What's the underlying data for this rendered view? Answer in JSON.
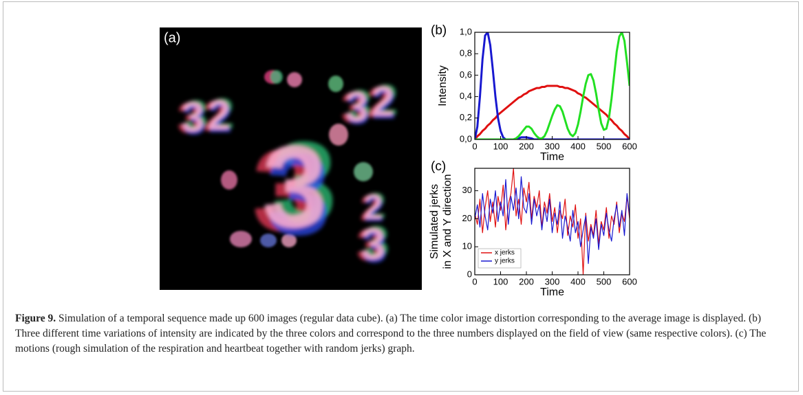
{
  "chart_data": [
    {
      "type": "line",
      "panel_label": "(b)",
      "x_label": "Time",
      "y_label": [
        "Intensity"
      ],
      "x": [
        0,
        10,
        20,
        30,
        40,
        50,
        60,
        70,
        80,
        90,
        100,
        110,
        120,
        130,
        140,
        150,
        160,
        170,
        180,
        190,
        200,
        210,
        220,
        230,
        240,
        250,
        260,
        270,
        280,
        290,
        300,
        310,
        320,
        330,
        340,
        350,
        360,
        370,
        380,
        390,
        400,
        410,
        420,
        430,
        440,
        450,
        460,
        470,
        480,
        490,
        500,
        510,
        520,
        530,
        540,
        550,
        560,
        570,
        580,
        590,
        600
      ],
      "series": [
        {
          "color": "#e01010",
          "values": [
            0,
            0.03,
            0.05,
            0.08,
            0.1,
            0.13,
            0.15,
            0.18,
            0.2,
            0.23,
            0.25,
            0.27,
            0.29,
            0.31,
            0.33,
            0.35,
            0.37,
            0.39,
            0.4,
            0.42,
            0.43,
            0.45,
            0.46,
            0.47,
            0.48,
            0.48,
            0.49,
            0.49,
            0.5,
            0.5,
            0.5,
            0.5,
            0.5,
            0.49,
            0.49,
            0.48,
            0.48,
            0.47,
            0.46,
            0.45,
            0.43,
            0.42,
            0.4,
            0.39,
            0.37,
            0.35,
            0.33,
            0.31,
            0.29,
            0.27,
            0.25,
            0.23,
            0.2,
            0.18,
            0.15,
            0.13,
            0.1,
            0.08,
            0.05,
            0.03,
            0
          ]
        },
        {
          "color": "#1818d0",
          "values": [
            0,
            0.12,
            0.4,
            0.75,
            0.97,
            1.0,
            0.88,
            0.65,
            0.4,
            0.2,
            0.08,
            0.02,
            0,
            0,
            0,
            0,
            0.005,
            0.01,
            0.02,
            0.02,
            0.02,
            0.015,
            0.01,
            0,
            0,
            0,
            0,
            0,
            0,
            0,
            0,
            0,
            0,
            0,
            0,
            0,
            0,
            0,
            0,
            0,
            0,
            0,
            0,
            0,
            0,
            0,
            0,
            0,
            0,
            0,
            0,
            0,
            0,
            0,
            0,
            0,
            0,
            0,
            0,
            0,
            0
          ]
        },
        {
          "color": "#22e022",
          "values": [
            0,
            0,
            0,
            0,
            0,
            0,
            0,
            0,
            0,
            0,
            0,
            0,
            0,
            0,
            0,
            0,
            0.01,
            0.03,
            0.06,
            0.09,
            0.12,
            0.12,
            0.1,
            0.06,
            0.03,
            0.01,
            0.01,
            0.03,
            0.08,
            0.15,
            0.22,
            0.28,
            0.32,
            0.31,
            0.26,
            0.18,
            0.1,
            0.05,
            0.03,
            0.06,
            0.14,
            0.26,
            0.4,
            0.52,
            0.6,
            0.61,
            0.55,
            0.43,
            0.28,
            0.15,
            0.09,
            0.1,
            0.2,
            0.38,
            0.6,
            0.82,
            0.96,
            1.0,
            0.92,
            0.72,
            0.5
          ]
        }
      ],
      "xlim": [
        0,
        600
      ],
      "ylim": [
        0,
        1
      ],
      "xticks": [
        0,
        100,
        200,
        300,
        400,
        500,
        600
      ],
      "yticks": [
        {
          "value": 0,
          "label": "0,0"
        },
        {
          "value": 0.2,
          "label": "0,2"
        },
        {
          "value": 0.4,
          "label": "0,4"
        },
        {
          "value": 0.6,
          "label": "0,6"
        },
        {
          "value": 0.8,
          "label": "0,8"
        },
        {
          "value": 1,
          "label": "1,0"
        }
      ]
    },
    {
      "type": "line",
      "panel_label": "(c)",
      "x_label": "Time",
      "y_label": [
        "Simulated jerks",
        "in X and Y direction"
      ],
      "x": [
        0,
        10,
        20,
        30,
        40,
        50,
        60,
        70,
        80,
        90,
        100,
        110,
        120,
        130,
        140,
        150,
        160,
        170,
        180,
        190,
        200,
        210,
        220,
        230,
        240,
        250,
        260,
        270,
        280,
        290,
        300,
        310,
        320,
        330,
        340,
        350,
        360,
        370,
        380,
        390,
        400,
        410,
        420,
        430,
        440,
        450,
        460,
        470,
        480,
        490,
        500,
        510,
        520,
        530,
        540,
        550,
        560,
        570,
        580,
        590,
        600
      ],
      "series": [
        {
          "name": "x jerks",
          "color": "#e01010",
          "values": [
            22,
            18,
            27,
            15,
            24,
            30,
            19,
            26,
            17,
            28,
            23,
            32,
            16,
            25,
            29,
            38,
            21,
            27,
            18,
            31,
            26,
            33,
            20,
            28,
            24,
            30,
            17,
            26,
            22,
            29,
            19,
            24,
            15,
            23,
            20,
            27,
            14,
            21,
            17,
            25,
            13,
            20,
            0,
            22,
            12,
            18,
            14,
            23,
            11,
            19,
            16,
            24,
            13,
            21,
            18,
            26,
            15,
            22,
            19,
            28,
            20
          ]
        },
        {
          "name": "y jerks",
          "color": "#1818d0",
          "values": [
            20,
            25,
            17,
            29,
            21,
            16,
            27,
            22,
            30,
            19,
            26,
            21,
            34,
            18,
            28,
            23,
            31,
            20,
            35,
            24,
            22,
            29,
            18,
            27,
            21,
            25,
            16,
            24,
            19,
            27,
            15,
            22,
            18,
            26,
            13,
            21,
            17,
            12,
            23,
            15,
            19,
            10,
            16,
            21,
            4,
            17,
            13,
            20,
            9,
            18,
            14,
            22,
            16,
            12,
            20,
            25,
            17,
            23,
            14,
            29,
            21
          ]
        }
      ],
      "xlim": [
        0,
        600
      ],
      "ylim": [
        0,
        38
      ],
      "xticks": [
        0,
        100,
        200,
        300,
        400,
        500,
        600
      ],
      "yticks": [
        0,
        10,
        20,
        30
      ],
      "legend": "lower left"
    }
  ],
  "panel_a": {
    "label": "(a)",
    "digits": [
      "3",
      "2",
      "3",
      "2",
      "3",
      "2",
      "3"
    ]
  },
  "caption": {
    "label": "Figure 9.",
    "text": "Simulation of a temporal sequence made up 600 images (regular data cube). (a) The time color image distortion corresponding to the average image is displayed. (b) Three different time variations of intensity are indicated by the three colors and correspond to the three numbers displayed on the field of view (same respective colors). (c) The motions (rough simulation of the respiration and heartbeat together with random jerks) graph."
  }
}
